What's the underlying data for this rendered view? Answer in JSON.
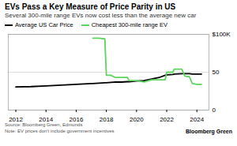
{
  "chart_data": {
    "type": "line",
    "title": "EVs Pass a Key Measure of Price Parity in US",
    "subtitle": "Several 300-mile range EVs now cost less than the average new car",
    "source": "Source: Bloomberg Green, Edmunds",
    "note": "Note: EV prices don't include government incentives",
    "credit": "Bloomberg Green",
    "x": [
      2012,
      2013,
      2014,
      2015,
      2016,
      2017,
      2017.1,
      2017.5,
      2017.9,
      2018.0,
      2018.3,
      2018.6,
      2019,
      2019.4,
      2019.5,
      2020,
      2020.5,
      2021,
      2021.5,
      2021.9,
      2022.0,
      2022.4,
      2022.5,
      2023,
      2023.2,
      2023.5,
      2023.7,
      2024,
      2024.3
    ],
    "series": [
      {
        "name": "Average US Car Price",
        "color": "#000000",
        "values": [
          30.5,
          31,
          32,
          33,
          34,
          35,
          35,
          35.5,
          36,
          36,
          36.5,
          37,
          37,
          37.5,
          37.5,
          38.5,
          39,
          41,
          43,
          46,
          46.5,
          47,
          47.5,
          48,
          48,
          48,
          47.5,
          47.5,
          47.5
        ]
      },
      {
        "name": "Cheapest 300-mile range EV",
        "color": "#5fd35f",
        "values": [
          null,
          null,
          null,
          null,
          null,
          null,
          95,
          95,
          94,
          46,
          46,
          43,
          43,
          43,
          39,
          39,
          37,
          40,
          40,
          40,
          50,
          50,
          54,
          54,
          45,
          44,
          35,
          34,
          34
        ]
      }
    ],
    "xlim": [
      2011.5,
      2024.8
    ],
    "xticks": [
      2012,
      2014,
      2016,
      2018,
      2020,
      2022,
      2024
    ],
    "ylim": [
      0,
      100
    ],
    "yticks": [
      0,
      50,
      {
        "value": 100,
        "label": "$100K"
      }
    ],
    "grid": true,
    "legend": "top-left"
  }
}
